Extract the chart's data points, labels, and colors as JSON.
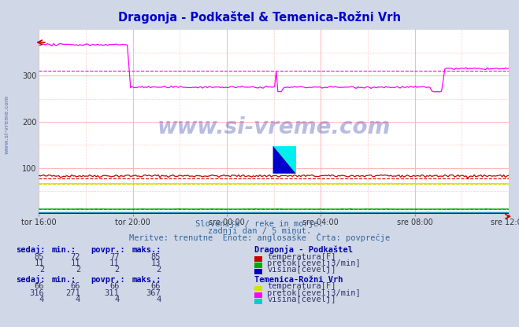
{
  "title": "Dragonja - Podkaštel & Temenica-Rožni Vrh",
  "title_color": "#0000cc",
  "bg_color": "#d0d8e8",
  "plot_bg_color": "#ffffff",
  "xlabel_ticks": [
    "tor 16:00",
    "tor 20:00",
    "sre 00:00",
    "sre 04:00",
    "sre 08:00",
    "sre 12:00"
  ],
  "n_points": 288,
  "ylim": [
    0,
    400
  ],
  "yticks": [
    100,
    200,
    300
  ],
  "subtitle1": "Slovenija / reke in morje.",
  "subtitle2": "zadnji dan / 5 minut.",
  "subtitle3": "Meritve: trenutne  Enote: anglosaške  Črta: povprečje",
  "watermark": "www.si-vreme.com",
  "legend_title1": "Dragonja - Podkaštel",
  "legend_title2": "Temenica-Rožni Vrh",
  "series": {
    "drag_temp": {
      "color": "#cc0000",
      "avg": 77,
      "min": 72,
      "max": 85,
      "sedaj": 85,
      "label": "temperatura[F]"
    },
    "drag_pretok": {
      "color": "#00aa00",
      "avg": 11,
      "min": 11,
      "max": 13,
      "sedaj": 11,
      "label": "pretok[čevelj3/min]"
    },
    "drag_visina": {
      "color": "#0000bb",
      "avg": 2,
      "min": 2,
      "max": 2,
      "sedaj": 2,
      "label": "višina[čevelj]"
    },
    "tem_temp": {
      "color": "#dddd00",
      "avg": 66,
      "min": 66,
      "max": 66,
      "sedaj": 66,
      "label": "temperatura[F]"
    },
    "tem_pretok": {
      "color": "#ff00ff",
      "avg": 311,
      "min": 271,
      "max": 367,
      "sedaj": 316,
      "label": "pretok[čevelj3/min]"
    },
    "tem_visina": {
      "color": "#00cccc",
      "avg": 4,
      "min": 4,
      "max": 4,
      "sedaj": 4,
      "label": "višina[čevelj]"
    }
  }
}
